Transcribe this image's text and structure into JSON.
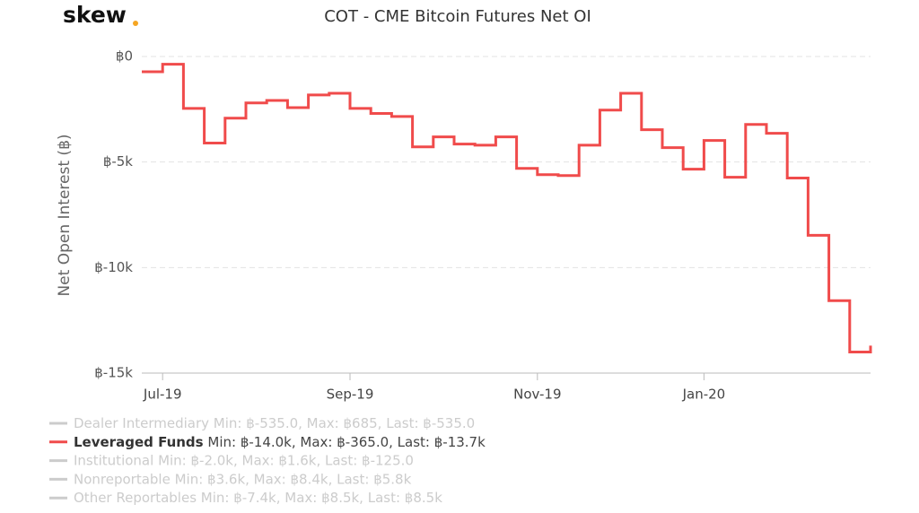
{
  "brand": "skew",
  "chart_data": {
    "type": "step-line",
    "title": "COT - CME Bitcoin Futures Net OI",
    "y_label": "Net Open Interest (฿)",
    "categories": [
      null,
      "Jul-19",
      null,
      null,
      null,
      null,
      null,
      null,
      null,
      null,
      "Sep-19",
      null,
      null,
      null,
      null,
      null,
      null,
      null,
      null,
      "Nov-19",
      null,
      null,
      null,
      null,
      null,
      null,
      null,
      "Jan-20",
      null,
      null,
      null,
      null,
      null,
      null,
      null,
      null
    ],
    "series": [
      {
        "name": "Leveraged Funds",
        "stats": "Min: ฿-14.0k, Max: ฿-365.0, Last: ฿-13.7k",
        "color": "#f04b4b",
        "values": [
          -720,
          -365,
          -2460,
          -4100,
          -2920,
          -2200,
          -2080,
          -2420,
          -1820,
          -1740,
          -2460,
          -2700,
          -2840,
          -4280,
          -3810,
          -4150,
          -4200,
          -3810,
          -5300,
          -5600,
          -5640,
          -4200,
          -2540,
          -1740,
          -3470,
          -4320,
          -5340,
          -3980,
          -5720,
          -3220,
          -3640,
          -5760,
          -8470,
          -11570,
          -14000,
          -13700
        ]
      }
    ],
    "hidden_series": [
      {
        "name": "Dealer Intermediary",
        "stats": "Min: ฿-535.0, Max: ฿685, Last: ฿-535.0"
      },
      {
        "name": "Institutional",
        "stats": "Min: ฿-2.0k, Max: ฿1.6k, Last: ฿-125.0"
      },
      {
        "name": "Nonreportable",
        "stats": "Min: ฿3.6k, Max: ฿8.4k, Last: ฿5.8k"
      },
      {
        "name": "Other Reportables",
        "stats": "Min: ฿-7.4k, Max: ฿8.5k, Last: ฿8.5k"
      }
    ],
    "ylim": [
      -15000,
      0
    ],
    "yticks": [
      {
        "value": 0,
        "label": "฿0"
      },
      {
        "value": -5000,
        "label": "฿-5k"
      },
      {
        "value": -10000,
        "label": "฿-10k"
      },
      {
        "value": -15000,
        "label": "฿-15k"
      }
    ],
    "grid": true
  }
}
